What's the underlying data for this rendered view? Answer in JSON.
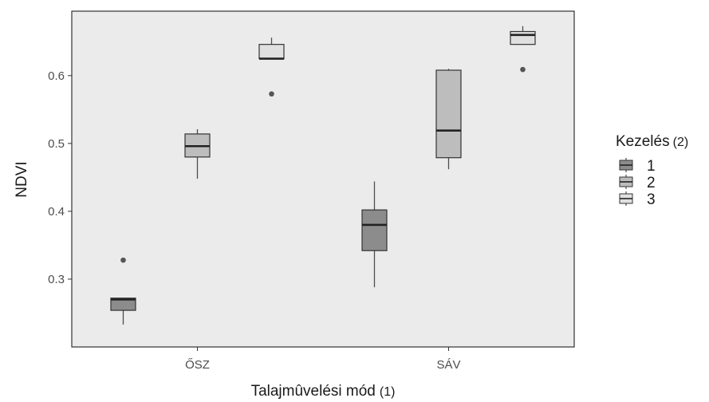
{
  "chart_data": {
    "type": "boxplot",
    "xlabel": "Talajmûvelési mód",
    "xlabel_suffix": "(1)",
    "ylabel": "NDVI",
    "ylim": [
      0.2,
      0.695
    ],
    "yticks": [
      "0.3",
      "0.4",
      "0.5",
      "0.6"
    ],
    "categories": [
      "ŐSZ",
      "SÁV"
    ],
    "legend": {
      "title": "Kezelés",
      "title_suffix": "(2)",
      "position": "right",
      "entries": [
        {
          "label": "1",
          "color": "#8c8c8c"
        },
        {
          "label": "2",
          "color": "#bdbdbd"
        },
        {
          "label": "3",
          "color": "#e0e0e0"
        }
      ]
    },
    "colors": {
      "panel_background": "#ebebeb",
      "box_outline": "#333333",
      "whisker": "#4d4d4d",
      "outlier": "#555555"
    },
    "boxes": [
      {
        "category": "ŐSZ",
        "group": "1",
        "whisker_low": 0.233,
        "q1": 0.254,
        "median": 0.27,
        "q3": 0.272,
        "whisker_high": 0.272,
        "outliers": [
          0.328
        ]
      },
      {
        "category": "ŐSZ",
        "group": "2",
        "whisker_low": 0.448,
        "q1": 0.48,
        "median": 0.496,
        "q3": 0.514,
        "whisker_high": 0.521,
        "outliers": []
      },
      {
        "category": "ŐSZ",
        "group": "3",
        "whisker_low": 0.625,
        "q1": 0.625,
        "median": 0.625,
        "q3": 0.646,
        "whisker_high": 0.656,
        "outliers": [
          0.573
        ]
      },
      {
        "category": "SÁV",
        "group": "1",
        "whisker_low": 0.288,
        "q1": 0.342,
        "median": 0.38,
        "q3": 0.402,
        "whisker_high": 0.444,
        "outliers": []
      },
      {
        "category": "SÁV",
        "group": "2",
        "whisker_low": 0.462,
        "q1": 0.479,
        "median": 0.519,
        "q3": 0.608,
        "whisker_high": 0.61,
        "outliers": []
      },
      {
        "category": "SÁV",
        "group": "3",
        "whisker_low": 0.646,
        "q1": 0.646,
        "median": 0.66,
        "q3": 0.665,
        "whisker_high": 0.673,
        "outliers": [
          0.609
        ]
      }
    ]
  }
}
